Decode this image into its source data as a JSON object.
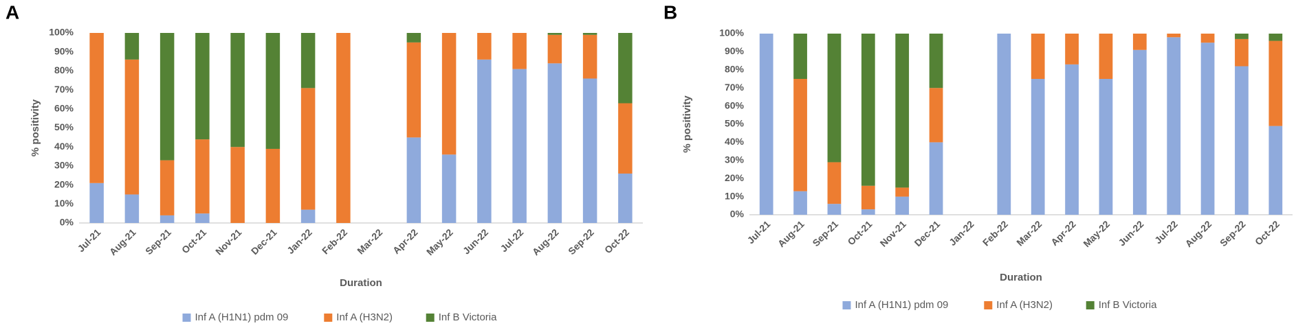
{
  "chart_data": [
    {
      "type": "bar",
      "stacked": true,
      "title": "A",
      "ylabel": "% positivity",
      "xlabel": "Duration",
      "categories": [
        "Jul-21",
        "Aug-21",
        "Sep-21",
        "Oct-21",
        "Nov-21",
        "Dec-21",
        "Jan-22",
        "Feb-22",
        "Mar-22",
        "Apr-22",
        "May-22",
        "Jun-22",
        "Jul-22",
        "Aug-22",
        "Sep-22",
        "Oct-22"
      ],
      "series": [
        {
          "name": "Inf A (H1N1) pdm 09",
          "color": "#8faadc",
          "values": [
            21,
            15,
            4,
            5,
            0,
            0,
            7,
            0,
            null,
            45,
            36,
            86,
            81,
            84,
            76,
            26
          ]
        },
        {
          "name": "Inf A (H3N2)",
          "color": "#ed7d31",
          "values": [
            79,
            71,
            29,
            39,
            40,
            39,
            64,
            100,
            null,
            50,
            64,
            14,
            19,
            15,
            23,
            37
          ]
        },
        {
          "name": "Inf B Victoria",
          "color": "#548235",
          "values": [
            0,
            14,
            67,
            56,
            60,
            61,
            29,
            0,
            null,
            5,
            0,
            0,
            0,
            1,
            1,
            37
          ]
        }
      ],
      "ylim": [
        0,
        100
      ],
      "yticks": [
        {
          "value": 0,
          "label": "0%"
        },
        {
          "value": 10,
          "label": "10%"
        },
        {
          "value": 20,
          "label": "20%"
        },
        {
          "value": 30,
          "label": "30%"
        },
        {
          "value": 40,
          "label": "40%"
        },
        {
          "value": 50,
          "label": "50%"
        },
        {
          "value": 60,
          "label": "60%"
        },
        {
          "value": 70,
          "label": "70%"
        },
        {
          "value": 80,
          "label": "80%"
        },
        {
          "value": 90,
          "label": "90%"
        },
        {
          "value": 100,
          "label": "100%"
        }
      ],
      "grid": false,
      "legend": "bottom"
    },
    {
      "type": "bar",
      "stacked": true,
      "title": "B",
      "ylabel": "% positivity",
      "xlabel": "Duration",
      "categories": [
        "Jul-21",
        "Aug-21",
        "Sep-21",
        "Oct-21",
        "Nov-21",
        "Dec-21",
        "Jan-22",
        "Feb-22",
        "Mar-22",
        "Apr-22",
        "May-22",
        "Jun-22",
        "Jul-22",
        "Aug-22",
        "Sep-22",
        "Oct-22"
      ],
      "series": [
        {
          "name": "Inf A (H1N1) pdm 09",
          "color": "#8faadc",
          "values": [
            100,
            13,
            6,
            3,
            10,
            40,
            null,
            100,
            75,
            83,
            75,
            91,
            98,
            95,
            82,
            49
          ]
        },
        {
          "name": "Inf A (H3N2)",
          "color": "#ed7d31",
          "values": [
            0,
            62,
            23,
            13,
            5,
            30,
            null,
            0,
            25,
            17,
            25,
            9,
            2,
            5,
            15,
            47
          ]
        },
        {
          "name": "Inf B Victoria",
          "color": "#548235",
          "values": [
            0,
            25,
            71,
            84,
            85,
            30,
            null,
            0,
            0,
            0,
            0,
            0,
            0,
            0,
            3,
            4
          ]
        }
      ],
      "ylim": [
        0,
        100
      ],
      "yticks": [
        {
          "value": 0,
          "label": "0%"
        },
        {
          "value": 10,
          "label": "10%"
        },
        {
          "value": 20,
          "label": "20%"
        },
        {
          "value": 30,
          "label": "30%"
        },
        {
          "value": 40,
          "label": "40%"
        },
        {
          "value": 50,
          "label": "50%"
        },
        {
          "value": 60,
          "label": "60%"
        },
        {
          "value": 70,
          "label": "70%"
        },
        {
          "value": 80,
          "label": "80%"
        },
        {
          "value": 90,
          "label": "90%"
        },
        {
          "value": 100,
          "label": "100%"
        }
      ],
      "grid": false,
      "legend": "bottom"
    }
  ]
}
